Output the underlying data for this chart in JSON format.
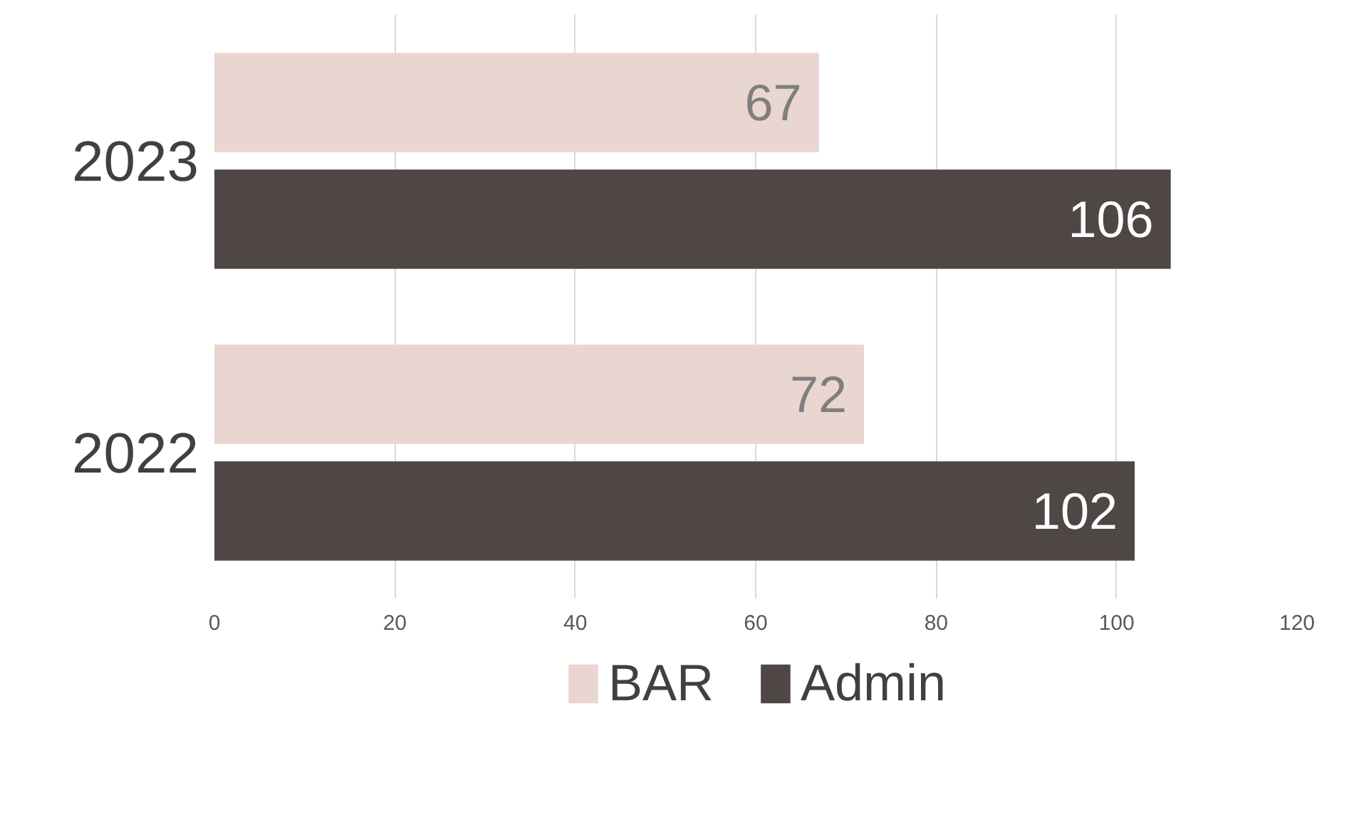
{
  "chart_data": {
    "type": "bar",
    "orientation": "horizontal",
    "categories": [
      "2023",
      "2022"
    ],
    "series": [
      {
        "name": "BAR",
        "color": "#e9d6d1",
        "values": [
          67,
          72
        ]
      },
      {
        "name": "Admin",
        "color": "#4f4746",
        "values": [
          106,
          102
        ]
      }
    ],
    "xlim": [
      0,
      120
    ],
    "xticks": [
      0,
      20,
      40,
      60,
      80,
      100,
      120
    ],
    "grid": "x",
    "legend": "bottom",
    "data_labels": true
  }
}
